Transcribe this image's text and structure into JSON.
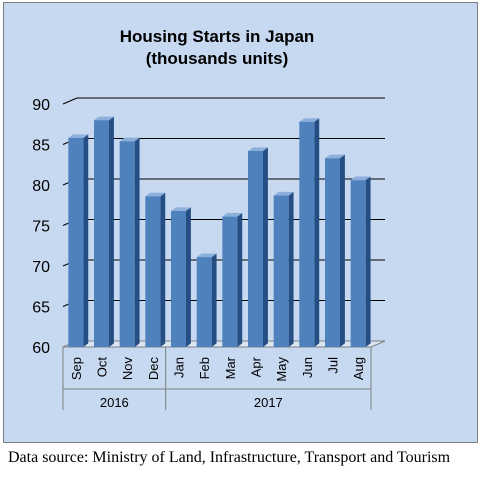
{
  "chart_data": {
    "type": "bar",
    "title": "Housing Starts in Japan",
    "subtitle": "(thousands units)",
    "categories": [
      "Sep",
      "Oct",
      "Nov",
      "Dec",
      "Jan",
      "Feb",
      "Mar",
      "Apr",
      "May",
      "Jun",
      "Jul",
      "Aug"
    ],
    "groups": [
      {
        "label": "2016",
        "count": 4
      },
      {
        "label": "2017",
        "count": 8
      }
    ],
    "values": [
      85.8,
      88.0,
      85.4,
      78.6,
      76.8,
      71.1,
      76.1,
      84.2,
      78.7,
      87.8,
      83.3,
      80.6
    ],
    "ylim": [
      60,
      90
    ],
    "yticks": [
      60,
      65,
      70,
      75,
      80,
      85,
      90
    ],
    "grid": true,
    "legend": "none",
    "style": "3d-column"
  },
  "colors": {
    "background": "#c6d9f1",
    "bar_front": "#4f81bd",
    "bar_side": "#254f84",
    "bar_top": "#8cb0db",
    "gridline": "#000000"
  },
  "source_note": "Data source: Ministry of Land, Infrastructure, Transport and Tourism"
}
